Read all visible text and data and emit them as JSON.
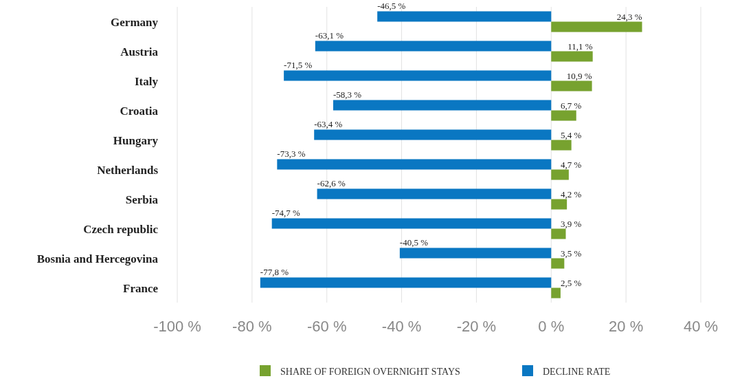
{
  "chart_data": {
    "type": "bar",
    "orientation": "horizontal",
    "categories": [
      "Germany",
      "Austria",
      "Italy",
      "Croatia",
      "Hungary",
      "Netherlands",
      "Serbia",
      "Czech republic",
      "Bosnia and Hercegovina",
      "France"
    ],
    "series": [
      {
        "name": "SHARE OF FOREIGN OVERNIGHT STAYS",
        "color": "#77a22f",
        "values": [
          24.3,
          11.1,
          10.9,
          6.7,
          5.4,
          4.7,
          4.2,
          3.9,
          3.5,
          2.5
        ],
        "value_labels": [
          "24,3 %",
          "11,1 %",
          "10,9 %",
          "6,7 %",
          "5,4 %",
          "4,7 %",
          "4,2 %",
          "3,9 %",
          "3,5 %",
          "2,5 %"
        ]
      },
      {
        "name": "DECLINE RATE",
        "color": "#0a77c2",
        "values": [
          -46.5,
          -63.1,
          -71.5,
          -58.3,
          -63.4,
          -73.3,
          -62.6,
          -74.7,
          -40.5,
          -77.8
        ],
        "value_labels": [
          "-46,5 %",
          "-63,1 %",
          "-71,5 %",
          "-58,3 %",
          "-63,4 %",
          "-73,3 %",
          "-62,6 %",
          "-74,7 %",
          "-40,5 %",
          "-77,8 %"
        ]
      }
    ],
    "xlim": [
      -100,
      40
    ],
    "xticks": [
      {
        "value": -100,
        "label": "-100 %"
      },
      {
        "value": -80,
        "label": "-80 %"
      },
      {
        "value": -60,
        "label": "-60 %"
      },
      {
        "value": -40,
        "label": "-40 %"
      },
      {
        "value": -20,
        "label": "-20 %"
      },
      {
        "value": 0,
        "label": "0 %"
      },
      {
        "value": 20,
        "label": "20 %"
      },
      {
        "value": 40,
        "label": "40 %"
      }
    ],
    "grid": "x",
    "legend": "bottom"
  }
}
